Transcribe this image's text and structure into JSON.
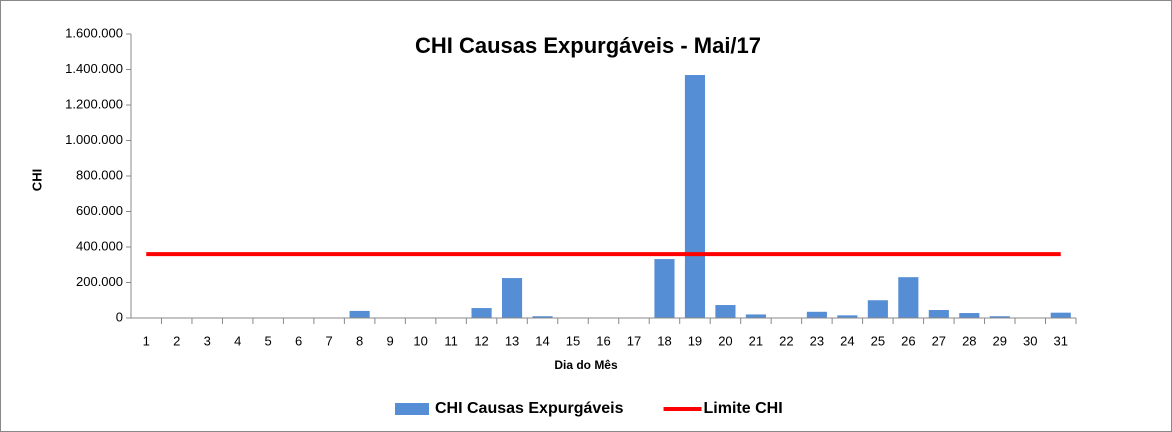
{
  "chart_data": {
    "type": "bar_line",
    "title": "CHI Causas Expurgáveis - Mai/17",
    "xlabel": "Dia do Mês",
    "ylabel": "CHI",
    "categories": [
      "1",
      "2",
      "3",
      "4",
      "5",
      "6",
      "7",
      "8",
      "9",
      "10",
      "11",
      "12",
      "13",
      "14",
      "15",
      "16",
      "17",
      "18",
      "19",
      "20",
      "21",
      "22",
      "23",
      "24",
      "25",
      "26",
      "27",
      "28",
      "29",
      "30",
      "31"
    ],
    "series": [
      {
        "name": "CHI Causas Expurgáveis",
        "type": "bar",
        "color": "#558ed5",
        "values": [
          0,
          0,
          0,
          0,
          0,
          0,
          0,
          40000,
          0,
          0,
          0,
          56000,
          225000,
          10000,
          0,
          0,
          0,
          332000,
          1369000,
          73000,
          20000,
          0,
          35000,
          15000,
          100000,
          230000,
          45000,
          28000,
          10000,
          0,
          30000
        ]
      },
      {
        "name": "Limite CHI",
        "type": "line",
        "color": "#ff0000",
        "values": [
          360000,
          360000,
          360000,
          360000,
          360000,
          360000,
          360000,
          360000,
          360000,
          360000,
          360000,
          360000,
          360000,
          360000,
          360000,
          360000,
          360000,
          360000,
          360000,
          360000,
          360000,
          360000,
          360000,
          360000,
          360000,
          360000,
          360000,
          360000,
          360000,
          360000,
          360000
        ]
      }
    ],
    "ylim": [
      0,
      1600000
    ],
    "yticks": [
      0,
      {
        "value": 200000,
        "label": "200.000"
      },
      {
        "value": 400000,
        "label": "400.000"
      },
      {
        "value": 600000,
        "label": "600.000"
      },
      {
        "value": 800000,
        "label": "800.000"
      },
      {
        "value": 1000000,
        "label": "1.000.000"
      },
      {
        "value": 1200000,
        "label": "1.200.000"
      },
      {
        "value": 1400000,
        "label": "1.400.000"
      },
      {
        "value": 1600000,
        "label": "1.600.000"
      }
    ],
    "grid": false,
    "legend": "bottom"
  }
}
